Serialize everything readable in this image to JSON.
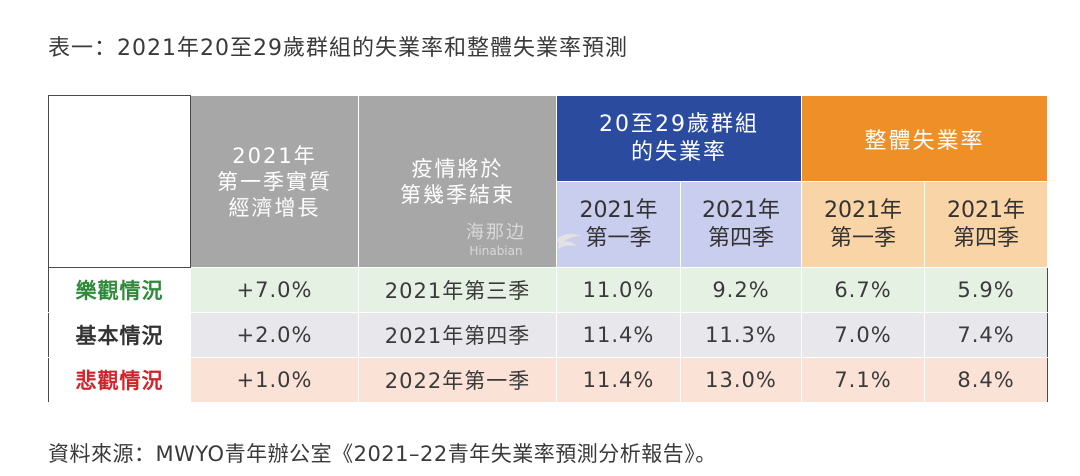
{
  "title": "表一：2021年20至29歲群組的失業率和整體失業率預測",
  "source": "資料來源：MWYO青年辦公室《2021–22青年失業率預測分析報告》。",
  "watermark": {
    "cn": "海那边",
    "en": "Hinabian"
  },
  "colors": {
    "gray_header": "#a7a7a7",
    "blue_header": "#2a4b9e",
    "blue_sub": "#c9cdee",
    "orange_header": "#ef8f27",
    "orange_sub": "#f9d4a7",
    "optimistic": "#2e8b3a",
    "baseline": "#333333",
    "pessimistic": "#d2232a"
  },
  "header": {
    "gdp_line1": "2021年",
    "gdp_line2": "第一季實質",
    "gdp_line3": "經濟增長",
    "epi_line1": "疫情將於",
    "epi_line2": "第幾季結束",
    "youth_line1": "20至29歲群組",
    "youth_line2": "的失業率",
    "overall": "整體失業率",
    "q1_top": "2021年",
    "q1_bottom": "第一季",
    "q4_top": "2021年",
    "q4_bottom": "第四季"
  },
  "rows": [
    {
      "label": "樂觀情況",
      "gdp": "+7.0%",
      "end": "2021年第三季",
      "youth_q1": "11.0%",
      "youth_q4": "9.2%",
      "overall_q1": "6.7%",
      "overall_q4": "5.9%"
    },
    {
      "label": "基本情況",
      "gdp": "+2.0%",
      "end": "2021年第四季",
      "youth_q1": "11.4%",
      "youth_q4": "11.3%",
      "overall_q1": "7.0%",
      "overall_q4": "7.4%"
    },
    {
      "label": "悲觀情況",
      "gdp": "+1.0%",
      "end": "2022年第一季",
      "youth_q1": "11.4%",
      "youth_q4": "13.0%",
      "overall_q1": "7.1%",
      "overall_q4": "8.4%"
    }
  ]
}
